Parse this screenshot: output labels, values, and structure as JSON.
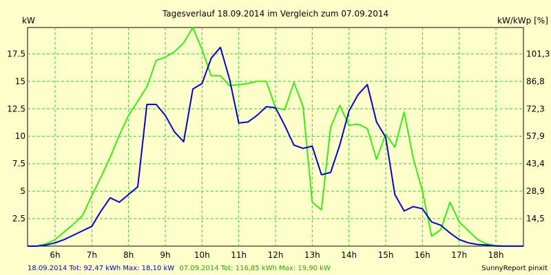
{
  "chart_data": {
    "type": "line",
    "title": "Tagesverlauf 18.09.2014 im Vergleich zum 07.09.2014",
    "ylabel_left": "kW",
    "ylabel_right": "kW/kWp [%]",
    "x_ticks": [
      "6h",
      "7h",
      "8h",
      "9h",
      "10h",
      "11h",
      "12h",
      "13h",
      "14h",
      "15h",
      "16h",
      "17h",
      "18h"
    ],
    "y_ticks_left": [
      "2.5",
      "5",
      "7.5",
      "10",
      "12.5",
      "15",
      "17.5"
    ],
    "y_ticks_right": [
      "14,5",
      "28,9",
      "43,4",
      "57,9",
      "72,3",
      "86,8",
      "101,3"
    ],
    "xlim": [
      5.25,
      18.75
    ],
    "ylim": [
      0,
      19.9
    ],
    "grid": true,
    "series": [
      {
        "name": "18.09.2014",
        "color": "#0000cc",
        "x": [
          5.25,
          5.5,
          5.75,
          6.0,
          6.25,
          6.5,
          6.75,
          7.0,
          7.25,
          7.5,
          7.75,
          8.0,
          8.25,
          8.5,
          8.75,
          9.0,
          9.25,
          9.5,
          9.75,
          10.0,
          10.25,
          10.5,
          10.75,
          11.0,
          11.25,
          11.5,
          11.75,
          12.0,
          12.25,
          12.5,
          12.75,
          13.0,
          13.25,
          13.5,
          13.75,
          14.0,
          14.25,
          14.5,
          14.75,
          15.0,
          15.25,
          15.5,
          15.75,
          16.0,
          16.25,
          16.5,
          16.75,
          17.0,
          17.25,
          17.5,
          17.75,
          18.0,
          18.25,
          18.5,
          18.75
        ],
        "values": [
          0,
          0,
          0.1,
          0.3,
          0.6,
          1.0,
          1.4,
          1.8,
          3.2,
          4.4,
          4.0,
          4.7,
          5.4,
          12.9,
          12.9,
          11.9,
          10.4,
          9.5,
          14.3,
          14.8,
          17.1,
          18.1,
          15.2,
          11.2,
          11.3,
          11.9,
          12.7,
          12.6,
          11.0,
          9.2,
          8.9,
          9.1,
          6.5,
          6.7,
          9.2,
          12.3,
          13.8,
          14.7,
          11.3,
          9.9,
          4.7,
          3.2,
          3.6,
          3.4,
          2.2,
          1.9,
          1.2,
          0.6,
          0.3,
          0.15,
          0.1,
          0,
          0,
          0,
          0
        ]
      },
      {
        "name": "07.09.2014",
        "color": "#33ee11",
        "x": [
          5.25,
          5.5,
          5.75,
          6.0,
          6.25,
          6.5,
          6.75,
          7.0,
          7.25,
          7.5,
          7.75,
          8.0,
          8.25,
          8.5,
          8.75,
          9.0,
          9.25,
          9.5,
          9.75,
          10.0,
          10.25,
          10.5,
          10.75,
          11.0,
          11.25,
          11.5,
          11.75,
          12.0,
          12.25,
          12.5,
          12.75,
          13.0,
          13.25,
          13.5,
          13.75,
          14.0,
          14.25,
          14.5,
          14.75,
          15.0,
          15.25,
          15.5,
          15.75,
          16.0,
          16.25,
          16.5,
          16.75,
          17.0,
          17.25,
          17.5,
          17.75,
          18.0,
          18.25,
          18.5,
          18.75
        ],
        "values": [
          0,
          0,
          0.2,
          0.6,
          1.3,
          2.0,
          2.8,
          4.6,
          6.3,
          8.1,
          10.1,
          11.9,
          13.2,
          14.5,
          16.9,
          17.2,
          17.7,
          18.5,
          19.9,
          17.9,
          15.5,
          15.5,
          14.6,
          14.7,
          14.8,
          15.0,
          15.0,
          12.6,
          12.4,
          14.9,
          12.7,
          4.0,
          3.3,
          10.8,
          12.8,
          11.0,
          11.1,
          10.7,
          7.9,
          10.2,
          9.0,
          12.2,
          8.0,
          5.0,
          0.9,
          1.5,
          4.0,
          2.2,
          1.4,
          0.6,
          0.2,
          0.05,
          0,
          0,
          0
        ]
      }
    ]
  },
  "footer": {
    "series1_text": "18.09.2014 Tot: 92,47 kWh Max: 18,10 kW",
    "series2_text": "07.09.2014 Tot: 116,85 kWh Max: 19,90 kW",
    "brand": "SunnyReport pinxit"
  },
  "colors": {
    "background": "#ffffcc",
    "grid": "#33cc33",
    "series1": "#0000cc",
    "series2": "#33ee11"
  }
}
